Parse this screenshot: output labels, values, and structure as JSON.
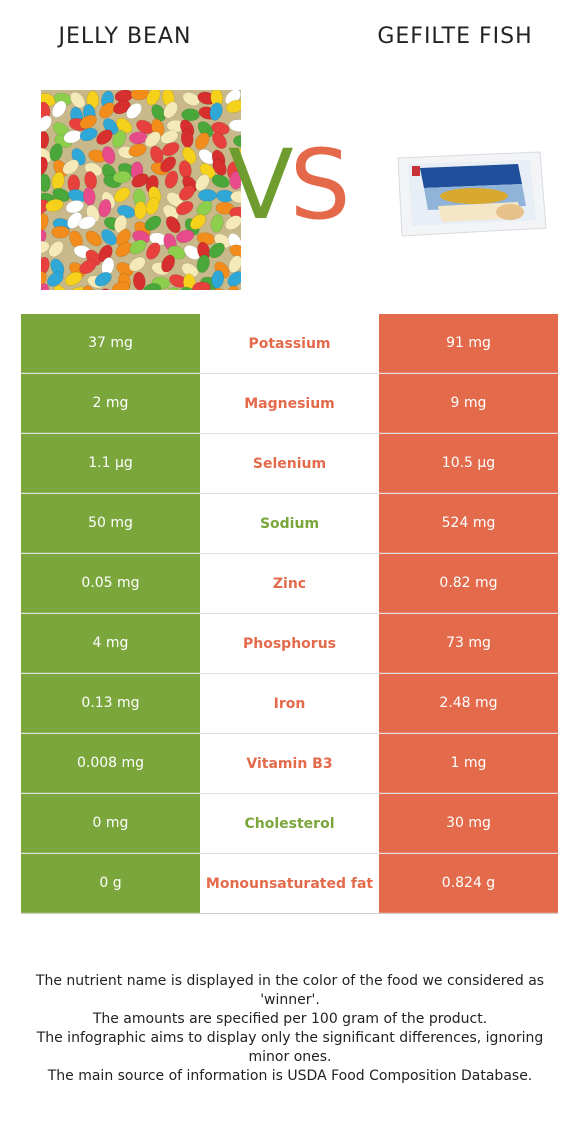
{
  "left_food": {
    "name": "JELLY BEAN",
    "color": "#7aa63b"
  },
  "right_food": {
    "name": "GEFILTE FISH",
    "color": "#e36b4c"
  },
  "vs": {
    "v": "V",
    "s": "S"
  },
  "rows": [
    {
      "nutrient": "Potassium",
      "left": "37 mg",
      "right": "91 mg",
      "winner": "right"
    },
    {
      "nutrient": "Magnesium",
      "left": "2 mg",
      "right": "9 mg",
      "winner": "right"
    },
    {
      "nutrient": "Selenium",
      "left": "1.1 µg",
      "right": "10.5 µg",
      "winner": "right"
    },
    {
      "nutrient": "Sodium",
      "left": "50 mg",
      "right": "524 mg",
      "winner": "left"
    },
    {
      "nutrient": "Zinc",
      "left": "0.05 mg",
      "right": "0.82 mg",
      "winner": "right"
    },
    {
      "nutrient": "Phosphorus",
      "left": "4 mg",
      "right": "73 mg",
      "winner": "right"
    },
    {
      "nutrient": "Iron",
      "left": "0.13 mg",
      "right": "2.48 mg",
      "winner": "right"
    },
    {
      "nutrient": "Vitamin B3",
      "left": "0.008 mg",
      "right": "1 mg",
      "winner": "right"
    },
    {
      "nutrient": "Cholesterol",
      "left": "0 mg",
      "right": "30 mg",
      "winner": "left"
    },
    {
      "nutrient": "Monounsaturated fat",
      "left": "0 g",
      "right": "0.824 g",
      "winner": "right"
    }
  ],
  "footer": {
    "line1": "The nutrient name is displayed in the color of the food we considered as 'winner'.",
    "line2": "The amounts are specified per 100 gram of the product.",
    "line3": "The infographic aims to display only the significant differences, ignoring minor ones.",
    "line4": "The main source of information is USDA Food Composition Database."
  },
  "colors": {
    "green": "#7aa63b",
    "orange": "#e36b4c"
  }
}
